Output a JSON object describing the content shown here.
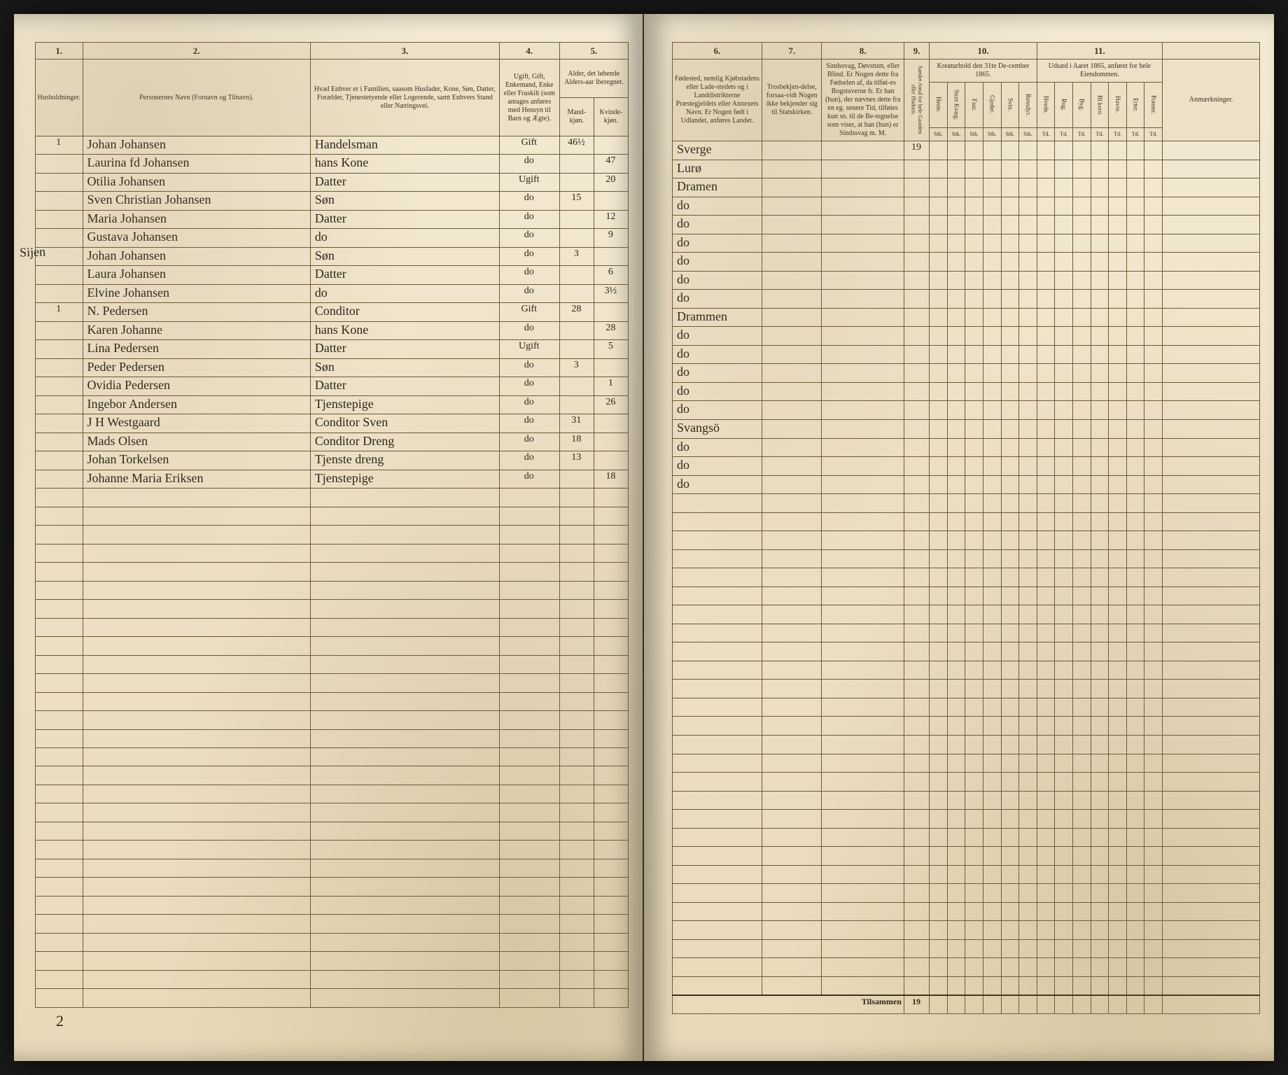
{
  "page": {
    "background_color": "#ede0c5",
    "rule_color": "#6b5a3a",
    "ink_color": "#2a2418",
    "left_margin_note": "Sijen",
    "page_number": "2",
    "footer_label_right": "Tilsammen",
    "footer_value": "19"
  },
  "left_columns": {
    "nums": [
      "1.",
      "2.",
      "3.",
      "4.",
      "5."
    ],
    "heads": [
      "Husholdninger.",
      "Personernes Navn (Fornavn og Tilnavn).",
      "Hvad Enhver er i Familien, saasom Husfader, Kone, Søn, Datter, Forælder, Tjenestetyende eller Logerende, samt Enhvers Stand eller Næringsvei.",
      "Ugift, Gift, Enkemand, Enke eller Fraskilt (som antages anføres med Hensyn til Barn og Ægte).",
      "Alder, det løbende Alders-aar iberegnet."
    ],
    "sub45": [
      "Mand-kjøn.",
      "Kvinde-kjøn."
    ]
  },
  "right_columns": {
    "nums": [
      "6.",
      "7.",
      "8.",
      "9.",
      "10.",
      "11.",
      ""
    ],
    "heads": [
      "Fødested, nemlig Kjøbstadens eller Lade-stedets og i Landdistrikterne Præstegjeldets eller Annexets Navn. Er Nogen født i Udlandet, anføres Landet.",
      "Trosbekjen-delse, forsaa-vidt Nogen ikke bekjender sig til Statskirken.",
      "Sindssvag, Døvstum, eller Blind. Er Nogen dette fra Fødselen af, da tilføi-es Bogstaverne fr. Er han (hun), der nævnes dette fra en eg. senere Tid, tilføies kun sn. til de Be-tegnelse som viser, at han (hun) er Sindssvag m. M.",
      "",
      "Kreaturhold den 31te De-cember 1865.",
      "Udsæd i Aaret 1865, anføret for hele Eiendommen.",
      "Anmærkninger."
    ],
    "head9": "Samlet Antal for hele Gaarden eller Pladsen.",
    "sub10": [
      "Heste.",
      "Stort Kvæg.",
      "Faar.",
      "Gjeder.",
      "Svin.",
      "Rensdyr."
    ],
    "sub11": [
      "Hvede.",
      "Rug.",
      "Byg.",
      "Bl.korn",
      "Havre.",
      "Erter.",
      "Poteter."
    ],
    "sub_unit": "Stk.",
    "sub_unit2": "Td."
  },
  "rows": [
    {
      "hh": "1",
      "name": "Johan Johansen",
      "rel": "Handelsman",
      "civ": "Gift",
      "m": "46½",
      "k": "",
      "birth": "Sverge",
      "c9": "19"
    },
    {
      "hh": "",
      "name": "Laurina fd Johansen",
      "rel": "hans Kone",
      "civ": "do",
      "m": "",
      "k": "47",
      "birth": "Lurø",
      "c9": ""
    },
    {
      "hh": "",
      "name": "Otilia Johansen",
      "rel": "Datter",
      "civ": "Ugift",
      "m": "",
      "k": "20",
      "birth": "Dramen",
      "c9": ""
    },
    {
      "hh": "",
      "name": "Sven Christian Johansen",
      "rel": "Søn",
      "civ": "do",
      "m": "15",
      "k": "",
      "birth": "do",
      "c9": ""
    },
    {
      "hh": "",
      "name": "Maria Johansen",
      "rel": "Datter",
      "civ": "do",
      "m": "",
      "k": "12",
      "birth": "do",
      "c9": ""
    },
    {
      "hh": "",
      "name": "Gustava Johansen",
      "rel": "do",
      "civ": "do",
      "m": "",
      "k": "9",
      "birth": "do",
      "c9": ""
    },
    {
      "hh": "",
      "name": "Johan Johansen",
      "rel": "Søn",
      "civ": "do",
      "m": "3",
      "k": "",
      "birth": "do",
      "c9": ""
    },
    {
      "hh": "",
      "name": "Laura Johansen",
      "rel": "Datter",
      "civ": "do",
      "m": "",
      "k": "6",
      "birth": "do",
      "c9": ""
    },
    {
      "hh": "",
      "name": "Elvine Johansen",
      "rel": "do",
      "civ": "do",
      "m": "",
      "k": "3½",
      "birth": "do",
      "c9": ""
    },
    {
      "hh": "1",
      "name": "N. Pedersen",
      "rel": "Conditor",
      "civ": "Gift",
      "m": "28",
      "k": "",
      "birth": "Drammen",
      "c9": ""
    },
    {
      "hh": "",
      "name": "Karen Johanne",
      "rel": "hans Kone",
      "civ": "do",
      "m": "",
      "k": "28",
      "birth": "do",
      "c9": ""
    },
    {
      "hh": "",
      "name": "Lina Pedersen",
      "rel": "Datter",
      "civ": "Ugift",
      "m": "",
      "k": "5",
      "birth": "do",
      "c9": ""
    },
    {
      "hh": "",
      "name": "Peder Pedersen",
      "rel": "Søn",
      "civ": "do",
      "m": "3",
      "k": "",
      "birth": "do",
      "c9": ""
    },
    {
      "hh": "",
      "name": "Ovidia Pedersen",
      "rel": "Datter",
      "civ": "do",
      "m": "",
      "k": "1",
      "birth": "do",
      "c9": ""
    },
    {
      "hh": "",
      "name": "Ingebor Andersen",
      "rel": "Tjenstepige",
      "civ": "do",
      "m": "",
      "k": "26",
      "birth": "do",
      "c9": ""
    },
    {
      "hh": "",
      "name": "J H Westgaard",
      "rel": "Conditor Sven",
      "civ": "do",
      "m": "31",
      "k": "",
      "birth": "Svangsö",
      "c9": ""
    },
    {
      "hh": "",
      "name": "Mads Olsen",
      "rel": "Conditor Dreng",
      "civ": "do",
      "m": "18",
      "k": "",
      "birth": "do",
      "c9": ""
    },
    {
      "hh": "",
      "name": "Johan Torkelsen",
      "rel": "Tjenste dreng",
      "civ": "do",
      "m": "13",
      "k": "",
      "birth": "do",
      "c9": ""
    },
    {
      "hh": "",
      "name": "Johanne Maria Eriksen",
      "rel": "Tjenstepige",
      "civ": "do",
      "m": "",
      "k": "18",
      "birth": "do",
      "c9": ""
    }
  ],
  "empty_rows": 28
}
